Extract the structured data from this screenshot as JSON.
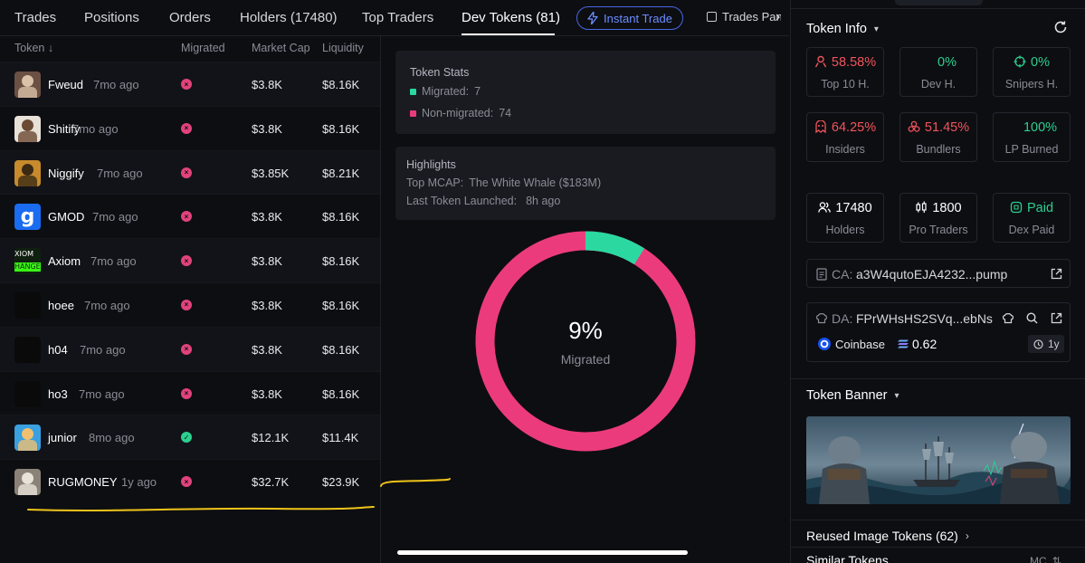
{
  "tabs": [
    {
      "label": "Trades"
    },
    {
      "label": "Positions"
    },
    {
      "label": "Orders"
    },
    {
      "label": "Holders (17480)"
    },
    {
      "label": "Top Traders"
    },
    {
      "label": "Dev Tokens (81)"
    }
  ],
  "instant_trade_label": "Instant Trade",
  "trades_panel_label": "Trades Panel",
  "table": {
    "headers": {
      "token": "Token ↓",
      "migrated": "Migrated",
      "market_cap": "Market Cap",
      "liquidity": "Liquidity"
    },
    "rows": [
      {
        "name": "Fweud",
        "age": "7mo ago",
        "migrated": false,
        "market_cap": "$3.8K",
        "liquidity": "$8.16K"
      },
      {
        "name": "Shitify",
        "age": "7mo ago",
        "migrated": false,
        "market_cap": "$3.8K",
        "liquidity": "$8.16K"
      },
      {
        "name": "Niggify",
        "age": "7mo ago",
        "migrated": false,
        "market_cap": "$3.85K",
        "liquidity": "$8.21K"
      },
      {
        "name": "GMOD",
        "age": "7mo ago",
        "migrated": false,
        "market_cap": "$3.8K",
        "liquidity": "$8.16K"
      },
      {
        "name": "Axiom",
        "age": "7mo ago",
        "migrated": false,
        "market_cap": "$3.8K",
        "liquidity": "$8.16K"
      },
      {
        "name": "hoee",
        "age": "7mo ago",
        "migrated": false,
        "market_cap": "$3.8K",
        "liquidity": "$8.16K"
      },
      {
        "name": "h04",
        "age": "7mo ago",
        "migrated": false,
        "market_cap": "$3.8K",
        "liquidity": "$8.16K"
      },
      {
        "name": "ho3",
        "age": "7mo ago",
        "migrated": false,
        "market_cap": "$3.8K",
        "liquidity": "$8.16K"
      },
      {
        "name": "junior",
        "age": "8mo ago",
        "migrated": true,
        "market_cap": "$12.1K",
        "liquidity": "$11.4K"
      },
      {
        "name": "RUGMONEY",
        "age": "1y ago",
        "migrated": false,
        "market_cap": "$32.7K",
        "liquidity": "$23.9K"
      }
    ]
  },
  "token_stats": {
    "title": "Token Stats",
    "migrated_label": "Migrated:",
    "migrated_count": "7",
    "non_migrated_label": "Non-migrated:",
    "non_migrated_count": "74"
  },
  "highlights": {
    "title": "Highlights",
    "top_mcap_label": "Top MCAP:",
    "top_mcap_value": "The White Whale ($183M)",
    "last_launched_label": "Last Token Launched:",
    "last_launched_value": "8h ago"
  },
  "donut": {
    "percent_label": "9%",
    "caption": "Migrated",
    "migrated_fraction": 0.09,
    "migrated_color": "#2bd9a0",
    "non_migrated_color": "#ec3b7c"
  },
  "token_info": {
    "title": "Token Info",
    "stats": [
      {
        "value": "58.58%",
        "label": "Top 10 H.",
        "color": "red",
        "icon": "user-icon"
      },
      {
        "value": "0%",
        "label": "Dev H.",
        "color": "green",
        "icon": "chef-hat-icon"
      },
      {
        "value": "0%",
        "label": "Snipers H.",
        "color": "green",
        "icon": "crosshair-icon"
      },
      {
        "value": "64.25%",
        "label": "Insiders",
        "color": "red",
        "icon": "ghost-icon"
      },
      {
        "value": "51.45%",
        "label": "Bundlers",
        "color": "red",
        "icon": "bundle-icon"
      },
      {
        "value": "100%",
        "label": "LP Burned",
        "color": "green",
        "icon": "flame-icon"
      },
      {
        "value": "17480",
        "label": "Holders",
        "color": "white",
        "icon": "users-icon"
      },
      {
        "value": "1800",
        "label": "Pro Traders",
        "color": "white",
        "icon": "candles-icon"
      },
      {
        "value": "Paid",
        "label": "Dex Paid",
        "color": "green",
        "icon": "dex-icon"
      }
    ],
    "ca_label": "CA:",
    "ca_value": "a3W4qutoEJA4232...pump",
    "da_label": "DA:",
    "da_value": "FPrWHsHS2SVq...ebNs",
    "funding_source": "Coinbase",
    "sol_balance": "0.62",
    "age": "1y"
  },
  "token_banner_title": "Token Banner",
  "reused_image_tokens": "Reused Image Tokens (62)",
  "similar_tokens": "Similar Tokens",
  "mc_label": "MC"
}
